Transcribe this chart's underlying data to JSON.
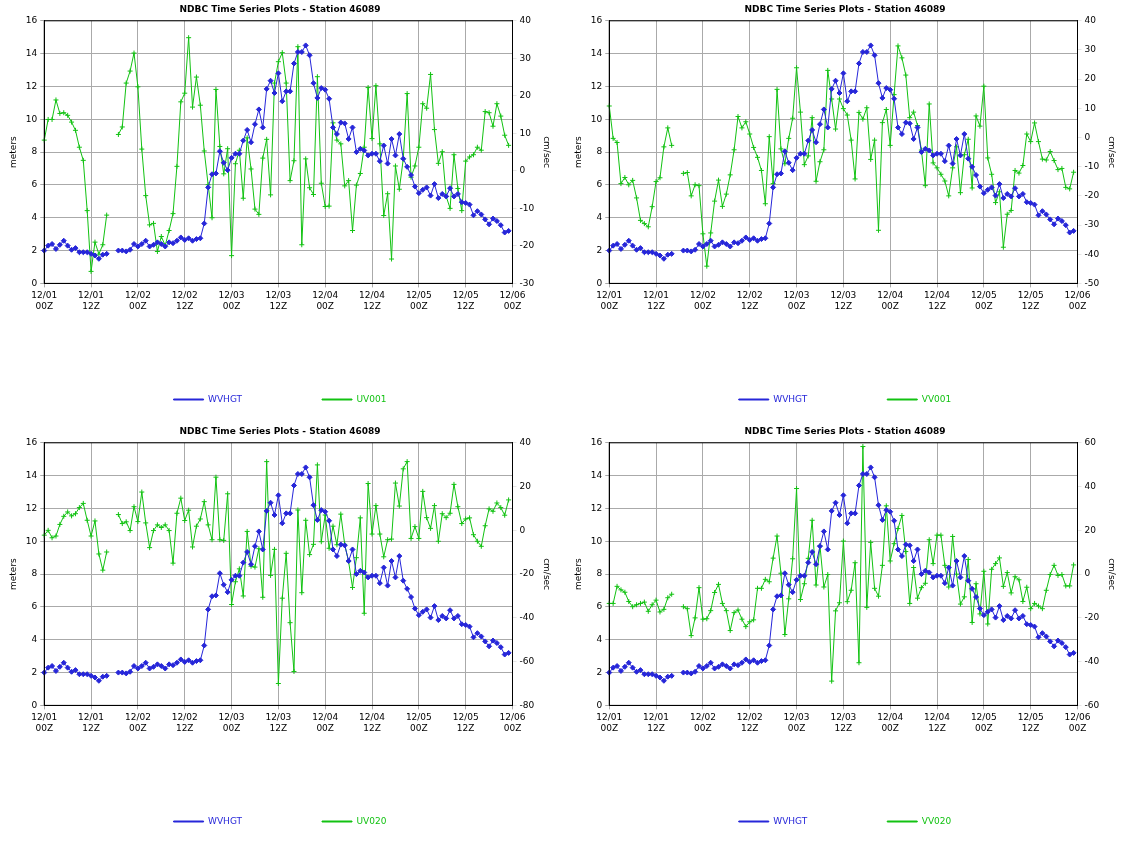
{
  "chart_data": [
    {
      "type": "line",
      "title": "NDBC Time Series Plots - Station 46089",
      "ylabel": "meters",
      "y2label": "cm/sec",
      "grid": true,
      "legend": "bottom",
      "categories": [
        "12/01 00Z",
        null,
        null,
        null,
        null,
        null,
        null,
        null,
        null,
        null,
        null,
        null,
        "12/01 12Z",
        null,
        null,
        null,
        null,
        null,
        null,
        null,
        null,
        null,
        null,
        null,
        "12/02 00Z",
        null,
        null,
        null,
        null,
        null,
        null,
        null,
        null,
        null,
        null,
        null,
        "12/02 12Z",
        null,
        null,
        null,
        null,
        null,
        null,
        null,
        null,
        null,
        null,
        null,
        "12/03 00Z",
        null,
        null,
        null,
        null,
        null,
        null,
        null,
        null,
        null,
        null,
        null,
        "12/03 12Z",
        null,
        null,
        null,
        null,
        null,
        null,
        null,
        null,
        null,
        null,
        null,
        "12/04 00Z",
        null,
        null,
        null,
        null,
        null,
        null,
        null,
        null,
        null,
        null,
        null,
        "12/04 12Z",
        null,
        null,
        null,
        null,
        null,
        null,
        null,
        null,
        null,
        null,
        null,
        "12/05 00Z",
        null,
        null,
        null,
        null,
        null,
        null,
        null,
        null,
        null,
        null,
        null,
        "12/05 12Z",
        null,
        null,
        null,
        null,
        null,
        null,
        null,
        null,
        null,
        null,
        null,
        "12/06 00Z"
      ],
      "ylim": [
        0,
        16
      ],
      "yticks": [
        0,
        2,
        4,
        6,
        8,
        10,
        12,
        14,
        16
      ],
      "y2lim": [
        -30,
        40
      ],
      "y2ticks": [
        -30,
        -20,
        -10,
        0,
        10,
        20,
        30,
        40
      ],
      "series": [
        {
          "name": "WVHGT",
          "color": "#2626d9",
          "marker": "diamond",
          "values": [
            2.0,
            2.3,
            2.4,
            2.1,
            2.35,
            2.6,
            2.3,
            2.05,
            2.15,
            1.9,
            1.9,
            1.9,
            1.8,
            1.7,
            1.5,
            1.75,
            1.8,
            null,
            null,
            2.0,
            2.0,
            1.95,
            2.05,
            2.4,
            2.25,
            2.4,
            2.6,
            2.25,
            2.35,
            2.5,
            2.4,
            2.25,
            2.5,
            2.45,
            2.6,
            2.8,
            2.65,
            2.75,
            2.6,
            2.7,
            2.75,
            3.65,
            5.85,
            6.65,
            6.7,
            8.05,
            7.35,
            6.9,
            7.65,
            7.9,
            7.9,
            8.7,
            9.35,
            8.6,
            9.7,
            10.6,
            9.5,
            11.85,
            12.35,
            11.6,
            12.8,
            11.1,
            11.7,
            11.7,
            13.4,
            14.1,
            14.1,
            14.5,
            13.9,
            12.2,
            11.3,
            11.9,
            11.8,
            11.25,
            9.5,
            9.1,
            9.8,
            9.75,
            8.8,
            9.5,
            8.0,
            8.2,
            8.1,
            7.8,
            7.9,
            7.9,
            7.45,
            8.4,
            7.3,
            8.8,
            7.8,
            9.1,
            7.6,
            7.1,
            6.6,
            5.9,
            5.5,
            5.7,
            5.85,
            5.35,
            6.05,
            5.2,
            5.45,
            5.3,
            5.8,
            5.3,
            5.45,
            4.95,
            4.9,
            4.8,
            4.15,
            4.4,
            4.2,
            3.9,
            3.6,
            3.95,
            3.8,
            3.55,
            3.1,
            3.2,
            null
          ]
        },
        {
          "name": "UV001",
          "color": "#12c212",
          "marker": "cross",
          "axis": "y2",
          "values": [
            8.2,
            13.7,
            13.7,
            18.9,
            15.3,
            15.5,
            14.8,
            13,
            10.8,
            6.3,
            2.8,
            -10.6,
            -26.8,
            -19,
            -22.2,
            -19.7,
            -11.8,
            null,
            null,
            9.7,
            11.7,
            23.4,
            26.6,
            31.4,
            22.4,
            5.8,
            -6.6,
            -14.4,
            -14,
            -21.5,
            -17.5,
            -19.9,
            -15.9,
            -11.4,
            1.2,
            18.4,
            20.7,
            35.5,
            17,
            25,
            17.5,
            5.3,
            -3.7,
            -12.5,
            21.7,
            6.5,
            -0.8,
            5.9,
            -22.6,
            1.9,
            5.5,
            -7.3,
            8.8,
            0.5,
            -10.2,
            -11.6,
            3.4,
            8.4,
            -6.4,
            23.4,
            29.1,
            31.5,
            23.4,
            -2.6,
            2.7,
            33.1,
            -19.7,
            3.2,
            -4.5,
            -6.3,
            25.1,
            -3.3,
            -9.5,
            -9.4,
            12.8,
            8.2,
            7.2,
            -4,
            -2.6,
            -15.9,
            -3.8,
            -0.7,
            6.3,
            22.2,
            8.6,
            22.7,
            7.2,
            -11.9,
            -6.1,
            -23.5,
            1.3,
            -4.9,
            3.1,
            20.6,
            -1.7,
            1.3,
            6.3,
            17.9,
            16.7,
            25.7,
            11,
            2,
            5.1,
            -6.8,
            -10,
            4.3,
            -4.7,
            -10.6,
            2.6,
            3.7,
            4.3,
            6.3,
            5.5,
            15.8,
            15.5,
            11.9,
            17.9,
            14.6,
            9.5,
            6.8,
            null
          ]
        }
      ]
    },
    {
      "type": "line",
      "title": "NDBC Time Series Plots - Station 46089",
      "ylabel": "meters",
      "y2label": "cm/sec",
      "grid": true,
      "legend": "bottom",
      "categories": [
        "12/01 00Z",
        null,
        null,
        null,
        null,
        null,
        null,
        null,
        null,
        null,
        null,
        null,
        "12/01 12Z",
        null,
        null,
        null,
        null,
        null,
        null,
        null,
        null,
        null,
        null,
        null,
        "12/02 00Z",
        null,
        null,
        null,
        null,
        null,
        null,
        null,
        null,
        null,
        null,
        null,
        "12/02 12Z",
        null,
        null,
        null,
        null,
        null,
        null,
        null,
        null,
        null,
        null,
        null,
        "12/03 00Z",
        null,
        null,
        null,
        null,
        null,
        null,
        null,
        null,
        null,
        null,
        null,
        "12/03 12Z",
        null,
        null,
        null,
        null,
        null,
        null,
        null,
        null,
        null,
        null,
        null,
        "12/04 00Z",
        null,
        null,
        null,
        null,
        null,
        null,
        null,
        null,
        null,
        null,
        null,
        "12/04 12Z",
        null,
        null,
        null,
        null,
        null,
        null,
        null,
        null,
        null,
        null,
        null,
        "12/05 00Z",
        null,
        null,
        null,
        null,
        null,
        null,
        null,
        null,
        null,
        null,
        null,
        "12/05 12Z",
        null,
        null,
        null,
        null,
        null,
        null,
        null,
        null,
        null,
        null,
        null,
        "12/06 00Z"
      ],
      "ylim": [
        0,
        16
      ],
      "yticks": [
        0,
        2,
        4,
        6,
        8,
        10,
        12,
        14,
        16
      ],
      "y2lim": [
        -50,
        40
      ],
      "y2ticks": [
        -50,
        -40,
        -30,
        -20,
        -10,
        0,
        10,
        20,
        30,
        40
      ],
      "series": [
        {
          "name": "WVHGT",
          "color": "#2626d9",
          "marker": "diamond",
          "values": [
            2.0,
            2.3,
            2.4,
            2.1,
            2.35,
            2.6,
            2.3,
            2.05,
            2.15,
            1.9,
            1.9,
            1.9,
            1.8,
            1.7,
            1.5,
            1.75,
            1.8,
            null,
            null,
            2.0,
            2.0,
            1.95,
            2.05,
            2.4,
            2.25,
            2.4,
            2.6,
            2.25,
            2.35,
            2.5,
            2.4,
            2.25,
            2.5,
            2.45,
            2.6,
            2.8,
            2.65,
            2.75,
            2.6,
            2.7,
            2.75,
            3.65,
            5.85,
            6.65,
            6.7,
            8.05,
            7.35,
            6.9,
            7.65,
            7.9,
            7.9,
            8.7,
            9.35,
            8.6,
            9.7,
            10.6,
            9.5,
            11.85,
            12.35,
            11.6,
            12.8,
            11.1,
            11.7,
            11.7,
            13.4,
            14.1,
            14.1,
            14.5,
            13.9,
            12.2,
            11.3,
            11.9,
            11.8,
            11.25,
            9.5,
            9.1,
            9.8,
            9.75,
            8.8,
            9.5,
            8.0,
            8.2,
            8.1,
            7.8,
            7.9,
            7.9,
            7.45,
            8.4,
            7.3,
            8.8,
            7.8,
            9.1,
            7.6,
            7.1,
            6.6,
            5.9,
            5.5,
            5.7,
            5.85,
            5.35,
            6.05,
            5.2,
            5.45,
            5.3,
            5.8,
            5.3,
            5.45,
            4.95,
            4.9,
            4.8,
            4.15,
            4.4,
            4.2,
            3.9,
            3.6,
            3.95,
            3.8,
            3.55,
            3.1,
            3.2,
            null
          ]
        },
        {
          "name": "VV001",
          "color": "#12c212",
          "marker": "cross",
          "axis": "y2",
          "values": [
            10.8,
            -0.3,
            -1.7,
            -15.8,
            -13.7,
            -16.2,
            -14.7,
            -20.7,
            -28.4,
            -29.5,
            -30.6,
            -23.7,
            -15.1,
            -13.8,
            -3.2,
            3.3,
            -2.7,
            null,
            null,
            -12.3,
            -12,
            -20,
            -16.2,
            -16.5,
            -33,
            -44.1,
            -32.7,
            -21.8,
            -14.6,
            -23.6,
            -19.4,
            -12.8,
            -4.2,
            7.2,
            3.3,
            5.4,
            1.2,
            -3.4,
            -6.8,
            -11.3,
            -22.7,
            0.3,
            -15.8,
            16.5,
            -3.9,
            -9,
            -0.3,
            6.6,
            23.9,
            8.7,
            -9.3,
            -6.3,
            6.8,
            -15,
            -8.3,
            -4.2,
            23,
            13.2,
            2.9,
            13.2,
            9.9,
            7.7,
            -0.9,
            -14.2,
            8.6,
            6.3,
            10.2,
            -7.5,
            -0.9,
            -31.8,
            5.1,
            9.6,
            -2.7,
            14.7,
            31.4,
            27.3,
            21.4,
            6.8,
            8.7,
            4.1,
            -4.3,
            -16.5,
            11.5,
            -8.7,
            -10.4,
            -12.6,
            -14.9,
            -20,
            -10.4,
            -3.2,
            -18.9,
            -5.9,
            -0.6,
            -17.3,
            7.4,
            3.9,
            17.6,
            -7,
            -12.6,
            -22.3,
            -18.6,
            -37.6,
            -26.3,
            -25,
            -11.3,
            -12.2,
            -9.6,
            1.2,
            -1.4,
            5,
            -1.4,
            -7.4,
            -7.7,
            -4.8,
            -7.9,
            -11,
            -10.6,
            -17.1,
            -17.6,
            -11.9,
            null
          ]
        }
      ]
    },
    {
      "type": "line",
      "title": "NDBC Time Series Plots - Station 46089",
      "ylabel": "meters",
      "y2label": "cm/sec",
      "grid": true,
      "legend": "bottom",
      "categories": [
        "12/01 00Z",
        null,
        null,
        null,
        null,
        null,
        null,
        null,
        null,
        null,
        null,
        null,
        "12/01 12Z",
        null,
        null,
        null,
        null,
        null,
        null,
        null,
        null,
        null,
        null,
        null,
        "12/02 00Z",
        null,
        null,
        null,
        null,
        null,
        null,
        null,
        null,
        null,
        null,
        null,
        "12/02 12Z",
        null,
        null,
        null,
        null,
        null,
        null,
        null,
        null,
        null,
        null,
        null,
        "12/03 00Z",
        null,
        null,
        null,
        null,
        null,
        null,
        null,
        null,
        null,
        null,
        null,
        "12/03 12Z",
        null,
        null,
        null,
        null,
        null,
        null,
        null,
        null,
        null,
        null,
        null,
        "12/04 00Z",
        null,
        null,
        null,
        null,
        null,
        null,
        null,
        null,
        null,
        null,
        null,
        "12/04 12Z",
        null,
        null,
        null,
        null,
        null,
        null,
        null,
        null,
        null,
        null,
        null,
        "12/05 00Z",
        null,
        null,
        null,
        null,
        null,
        null,
        null,
        null,
        null,
        null,
        null,
        "12/05 12Z",
        null,
        null,
        null,
        null,
        null,
        null,
        null,
        null,
        null,
        null,
        null,
        "12/06 00Z"
      ],
      "ylim": [
        0,
        16
      ],
      "yticks": [
        0,
        2,
        4,
        6,
        8,
        10,
        12,
        14,
        16
      ],
      "y2lim": [
        -80,
        40
      ],
      "y2ticks": [
        -80,
        -60,
        -40,
        -20,
        0,
        20,
        40
      ],
      "series": [
        {
          "name": "WVHGT",
          "color": "#2626d9",
          "marker": "diamond",
          "values": [
            2.0,
            2.3,
            2.4,
            2.1,
            2.35,
            2.6,
            2.3,
            2.05,
            2.15,
            1.9,
            1.9,
            1.9,
            1.8,
            1.7,
            1.5,
            1.75,
            1.8,
            null,
            null,
            2.0,
            2.0,
            1.95,
            2.05,
            2.4,
            2.25,
            2.4,
            2.6,
            2.25,
            2.35,
            2.5,
            2.4,
            2.25,
            2.5,
            2.45,
            2.6,
            2.8,
            2.65,
            2.75,
            2.6,
            2.7,
            2.75,
            3.65,
            5.85,
            6.65,
            6.7,
            8.05,
            7.35,
            6.9,
            7.65,
            7.9,
            7.9,
            8.7,
            9.35,
            8.6,
            9.7,
            10.6,
            9.5,
            11.85,
            12.35,
            11.6,
            12.8,
            11.1,
            11.7,
            11.7,
            13.4,
            14.1,
            14.1,
            14.5,
            13.9,
            12.2,
            11.3,
            11.9,
            11.8,
            11.25,
            9.5,
            9.1,
            9.8,
            9.75,
            8.8,
            9.5,
            8.0,
            8.2,
            8.1,
            7.8,
            7.9,
            7.9,
            7.45,
            8.4,
            7.3,
            8.8,
            7.8,
            9.1,
            7.6,
            7.1,
            6.6,
            5.9,
            5.5,
            5.7,
            5.85,
            5.35,
            6.05,
            5.2,
            5.45,
            5.3,
            5.8,
            5.3,
            5.45,
            4.95,
            4.9,
            4.8,
            4.15,
            4.4,
            4.2,
            3.9,
            3.6,
            3.95,
            3.8,
            3.55,
            3.1,
            3.2,
            null
          ]
        },
        {
          "name": "UV020",
          "color": "#12c212",
          "marker": "cross",
          "axis": "y2",
          "values": [
            -2.2,
            0,
            -3.4,
            -2.6,
            2.7,
            6.4,
            8.4,
            6.6,
            7.6,
            10.4,
            12.3,
            4.6,
            -2.6,
            4.3,
            -10.8,
            -18.2,
            -9.9,
            null,
            null,
            7.2,
            3.1,
            3.9,
            -0.1,
            10.8,
            4,
            17.5,
            3.4,
            -7.9,
            -0.1,
            2.5,
            1.3,
            2.5,
            -0.1,
            -15,
            7.8,
            14.7,
            4.5,
            9.2,
            -7.6,
            1.9,
            5.2,
            13.1,
            2.5,
            -4.3,
            24.3,
            -4.3,
            -4.6,
            16.7,
            -33.9,
            -23.5,
            -17.6,
            -30,
            -0.5,
            -16.4,
            -16.8,
            -8.4,
            -30.6,
            31.4,
            -20.6,
            -8.7,
            -70,
            -31,
            -10.5,
            -42.2,
            -64.5,
            9.3,
            -28.5,
            4.6,
            -11.1,
            -6.4,
            29.9,
            -5.2,
            7,
            -8.2,
            1.9,
            -6.6,
            7.4,
            -6.4,
            -14.3,
            -26.1,
            -12.5,
            5.7,
            -37.9,
            21.4,
            -1.7,
            11.3,
            -1.7,
            -12.1,
            -4.3,
            -4,
            21.6,
            11.1,
            28.1,
            31.4,
            -3.7,
            1.7,
            -3.7,
            17.8,
            5.8,
            0.9,
            11.3,
            -5,
            7.6,
            5.8,
            7.8,
            21,
            10.8,
            3.1,
            5.2,
            5.7,
            -2,
            -5,
            -7.3,
            2.1,
            9.8,
            8.7,
            12.5,
            10.4,
            6.9,
            13.9,
            null
          ]
        }
      ]
    },
    {
      "type": "line",
      "title": "NDBC Time Series Plots - Station 46089",
      "ylabel": "meters",
      "y2label": "cm/sec",
      "grid": true,
      "legend": "bottom",
      "categories": [
        "12/01 00Z",
        null,
        null,
        null,
        null,
        null,
        null,
        null,
        null,
        null,
        null,
        null,
        "12/01 12Z",
        null,
        null,
        null,
        null,
        null,
        null,
        null,
        null,
        null,
        null,
        null,
        "12/02 00Z",
        null,
        null,
        null,
        null,
        null,
        null,
        null,
        null,
        null,
        null,
        null,
        "12/02 12Z",
        null,
        null,
        null,
        null,
        null,
        null,
        null,
        null,
        null,
        null,
        null,
        "12/03 00Z",
        null,
        null,
        null,
        null,
        null,
        null,
        null,
        null,
        null,
        null,
        null,
        "12/03 12Z",
        null,
        null,
        null,
        null,
        null,
        null,
        null,
        null,
        null,
        null,
        null,
        "12/04 00Z",
        null,
        null,
        null,
        null,
        null,
        null,
        null,
        null,
        null,
        null,
        null,
        "12/04 12Z",
        null,
        null,
        null,
        null,
        null,
        null,
        null,
        null,
        null,
        null,
        null,
        "12/05 00Z",
        null,
        null,
        null,
        null,
        null,
        null,
        null,
        null,
        null,
        null,
        null,
        "12/05 12Z",
        null,
        null,
        null,
        null,
        null,
        null,
        null,
        null,
        null,
        null,
        null,
        "12/06 00Z"
      ],
      "ylim": [
        0,
        16
      ],
      "yticks": [
        0,
        2,
        4,
        6,
        8,
        10,
        12,
        14,
        16
      ],
      "y2lim": [
        -60,
        60
      ],
      "y2ticks": [
        -60,
        -40,
        -20,
        0,
        20,
        40,
        60
      ],
      "series": [
        {
          "name": "WVHGT",
          "color": "#2626d9",
          "marker": "diamond",
          "values": [
            2.0,
            2.3,
            2.4,
            2.1,
            2.35,
            2.6,
            2.3,
            2.05,
            2.15,
            1.9,
            1.9,
            1.9,
            1.8,
            1.7,
            1.5,
            1.75,
            1.8,
            null,
            null,
            2.0,
            2.0,
            1.95,
            2.05,
            2.4,
            2.25,
            2.4,
            2.6,
            2.25,
            2.35,
            2.5,
            2.4,
            2.25,
            2.5,
            2.45,
            2.6,
            2.8,
            2.65,
            2.75,
            2.6,
            2.7,
            2.75,
            3.65,
            5.85,
            6.65,
            6.7,
            8.05,
            7.35,
            6.9,
            7.65,
            7.9,
            7.9,
            8.7,
            9.35,
            8.6,
            9.7,
            10.6,
            9.5,
            11.85,
            12.35,
            11.6,
            12.8,
            11.1,
            11.7,
            11.7,
            13.4,
            14.1,
            14.1,
            14.5,
            13.9,
            12.2,
            11.3,
            11.9,
            11.8,
            11.25,
            9.5,
            9.1,
            9.8,
            9.75,
            8.8,
            9.5,
            8.0,
            8.2,
            8.1,
            7.8,
            7.9,
            7.9,
            7.45,
            8.4,
            7.3,
            8.8,
            7.8,
            9.1,
            7.6,
            7.1,
            6.6,
            5.9,
            5.5,
            5.7,
            5.85,
            5.35,
            6.05,
            5.2,
            5.45,
            5.3,
            5.8,
            5.3,
            5.45,
            4.95,
            4.9,
            4.8,
            4.15,
            4.4,
            4.2,
            3.9,
            3.6,
            3.95,
            3.8,
            3.55,
            3.1,
            3.2,
            null
          ]
        },
        {
          "name": "VV020",
          "color": "#12c212",
          "marker": "cross",
          "axis": "y2",
          "values": [
            -13.4,
            -13.4,
            -5.6,
            -7.2,
            -8.3,
            -12.5,
            -14.9,
            -14,
            -13.4,
            -12.8,
            -17,
            -14,
            -11.9,
            -17.3,
            -16.1,
            -10.8,
            -9.2,
            null,
            null,
            -14.9,
            -15.8,
            -28.1,
            -20,
            -6.2,
            -20.6,
            -20.4,
            -16.7,
            -8.4,
            -4.7,
            -13.4,
            -16.7,
            -25.8,
            -17.6,
            -16.4,
            -20.6,
            -24,
            -21.8,
            -20.9,
            -6.5,
            -6.5,
            -2.4,
            -3.5,
            7.3,
            17.4,
            0.4,
            -27.6,
            -11.3,
            7,
            39.1,
            -11.6,
            -4.4,
            7.2,
            24.6,
            -5,
            13,
            -5.9,
            -0.2,
            -48.9,
            -16.8,
            -13.1,
            15.1,
            -12.6,
            -7.4,
            5.2,
            -40.5,
            58.3,
            -15.2,
            14.5,
            -6.5,
            -10.1,
            4,
            31.2,
            6,
            13.9,
            20.8,
            26.8,
            10.3,
            -13.4,
            3,
            -11,
            -6.2,
            -4.2,
            15.7,
            4.8,
            17.8,
            17.8,
            4,
            -5.9,
            17.2,
            0,
            -13.7,
            -10.4,
            6.7,
            -22.1,
            -4.4,
            -18.2,
            1.3,
            -22.8,
            2.2,
            4.8,
            7.4,
            -5.6,
            0.7,
            -8.6,
            -1.2,
            -2.6,
            -12.5,
            -6,
            -15.8,
            -13.4,
            -14.6,
            -15.8,
            -7.4,
            -0.2,
            4,
            -0.6,
            -0.2,
            -5.4,
            -5.4,
            4.2,
            null
          ]
        }
      ]
    }
  ]
}
